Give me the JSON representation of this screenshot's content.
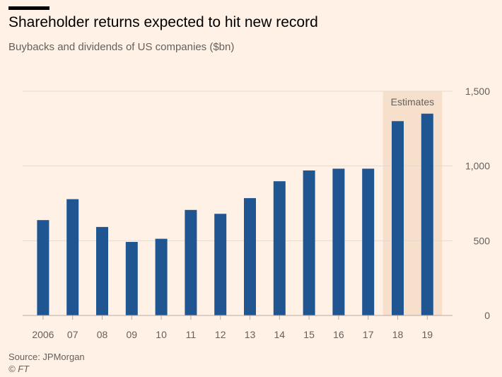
{
  "header": {
    "title": "Shareholder returns expected to hit new record",
    "subtitle": "Buybacks and dividends of US companies ($bn)"
  },
  "footer": {
    "source": "Source: JPMorgan",
    "credit": "© FT"
  },
  "colors": {
    "background": "#fff1e5",
    "bar": "#1f5691",
    "estimate_band": "#f6dfcb",
    "gridline": "#e6d9ce",
    "baseline": "#b8aca3"
  },
  "chart_data": {
    "type": "bar",
    "title": "Shareholder returns expected to hit new record",
    "subtitle": "Buybacks and dividends of US companies ($bn)",
    "categories": [
      "2006",
      "07",
      "08",
      "09",
      "10",
      "11",
      "12",
      "13",
      "14",
      "15",
      "16",
      "17",
      "18",
      "19"
    ],
    "values": [
      638,
      778,
      592,
      492,
      513,
      706,
      680,
      785,
      898,
      970,
      982,
      982,
      1300,
      1350
    ],
    "estimate_categories": [
      "18",
      "19"
    ],
    "estimate_label": "Estimates",
    "ylim": [
      0,
      1500
    ],
    "yticks": [
      0,
      500,
      1000,
      1500
    ],
    "ytick_labels": [
      "0",
      "500",
      "1,000",
      "1,500"
    ],
    "y_axis_side": "right",
    "grid": true,
    "legend": "none"
  }
}
